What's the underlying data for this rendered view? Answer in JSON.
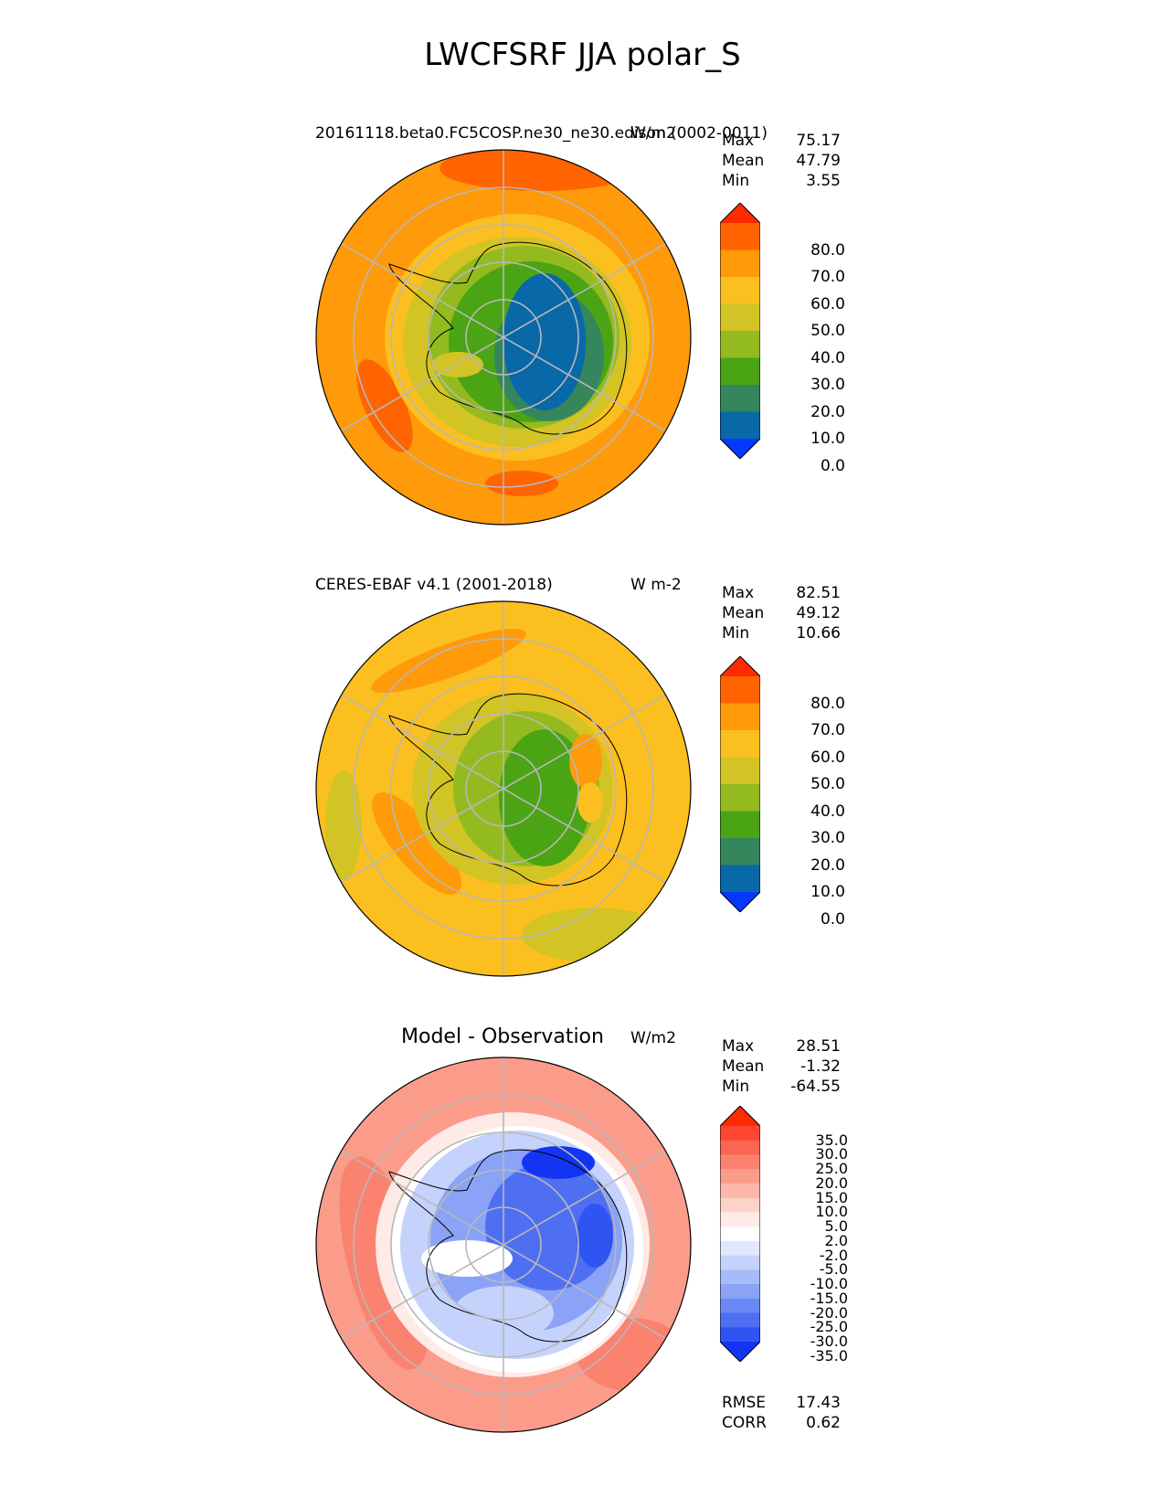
{
  "title": "LWCFSRF JJA polar_S",
  "panels": [
    {
      "id": "test",
      "title": "20161118.beta0.FC5COSP.ne30_ne30.edison (0002-0011)",
      "units": "W/m2",
      "stats": [
        {
          "label": "Max",
          "value": "75.17"
        },
        {
          "label": "Mean",
          "value": "47.79"
        },
        {
          "label": "Min",
          "value": "3.55"
        }
      ],
      "colorbar": {
        "ticks": [
          "80.0",
          "70.0",
          "60.0",
          "50.0",
          "40.0",
          "30.0",
          "20.0",
          "10.0",
          "0.0"
        ],
        "colors": [
          "#ff2a00",
          "#ff6400",
          "#ff9a0a",
          "#fcbf20",
          "#d2c424",
          "#93bb1f",
          "#4aa414",
          "#35865c",
          "#0868a8",
          "#0538ff"
        ]
      }
    },
    {
      "id": "reference",
      "title": "CERES-EBAF v4.1 (2001-2018)",
      "units": "W m-2",
      "stats": [
        {
          "label": "Max",
          "value": "82.51"
        },
        {
          "label": "Mean",
          "value": "49.12"
        },
        {
          "label": "Min",
          "value": "10.66"
        }
      ],
      "colorbar": {
        "ticks": [
          "80.0",
          "70.0",
          "60.0",
          "50.0",
          "40.0",
          "30.0",
          "20.0",
          "10.0",
          "0.0"
        ],
        "colors": [
          "#ff2a00",
          "#ff6400",
          "#ff9a0a",
          "#fcbf20",
          "#d2c424",
          "#93bb1f",
          "#4aa414",
          "#35865c",
          "#0868a8",
          "#0538ff"
        ]
      }
    },
    {
      "id": "diff",
      "title": "Model - Observation",
      "units": "W/m2",
      "stats": [
        {
          "label": "Max",
          "value": "28.51"
        },
        {
          "label": "Mean",
          "value": "-1.32"
        },
        {
          "label": "Min",
          "value": "-64.55"
        }
      ],
      "colorbar": {
        "ticks": [
          "35.0",
          "30.0",
          "25.0",
          "20.0",
          "15.0",
          "10.0",
          "5.0",
          "2.0",
          "-2.0",
          "-5.0",
          "-10.0",
          "-15.0",
          "-20.0",
          "-25.0",
          "-30.0",
          "-35.0"
        ],
        "colors": [
          "#ff2a00",
          "#ff4633",
          "#fb6650",
          "#fa826e",
          "#fb9c8b",
          "#fcb7aa",
          "#fdd2c9",
          "#feeae6",
          "#ffffff",
          "#e1e8fd",
          "#c5d2fb",
          "#a7bbf9",
          "#8aa3f7",
          "#6a88f5",
          "#4f6ff3",
          "#2e55f1",
          "#1334f3"
        ]
      },
      "metrics": [
        {
          "label": "RMSE",
          "value": "17.43"
        },
        {
          "label": "CORR",
          "value": "0.62"
        }
      ]
    }
  ]
}
